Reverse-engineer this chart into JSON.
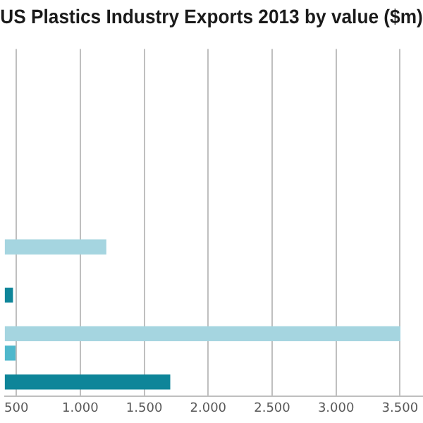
{
  "chart_data": {
    "type": "bar",
    "orientation": "horizontal",
    "title": "US Plastics Industry Exports 2013 by value ($m)",
    "categories": [
      null,
      null,
      null,
      null,
      null,
      null,
      null,
      null,
      null,
      null,
      null,
      null,
      null,
      null,
      null,
      null,
      null,
      null,
      null,
      null,
      null,
      null,
      null,
      null,
      null,
      null,
      null,
      null,
      null,
      null,
      null,
      null,
      null,
      null,
      null,
      null
    ],
    "values": [
      null,
      null,
      null,
      null,
      null,
      null,
      null,
      null,
      null,
      null,
      null,
      null,
      null,
      null,
      null,
      null,
      null,
      null,
      null,
      null,
      1200,
      null,
      null,
      null,
      null,
      470,
      null,
      null,
      null,
      3500,
      null,
      490,
      null,
      null,
      1700,
      null
    ],
    "colors": [
      "#a5d5e0",
      "#a5d5e0",
      "#a5d5e0",
      "#a5d5e0",
      "#a5d5e0",
      "#a5d5e0",
      "#a5d5e0",
      "#a5d5e0",
      "#a5d5e0",
      "#a5d5e0",
      "#a5d5e0",
      "#a5d5e0",
      "#a5d5e0",
      "#a5d5e0",
      "#a5d5e0",
      "#a5d5e0",
      "#a5d5e0",
      "#a5d5e0",
      "#a5d5e0",
      "#a5d5e0",
      "#a5d5e0",
      "#a5d5e0",
      "#a5d5e0",
      "#a5d5e0",
      "#a5d5e0",
      "#0e8599",
      "#a5d5e0",
      "#a5d5e0",
      "#a5d5e0",
      "#a5d5e0",
      "#a5d5e0",
      "#4fb8cc",
      "#a5d5e0",
      "#a5d5e0",
      "#0e8599",
      "#a5d5e0"
    ],
    "xlim": [
      410,
      3680
    ],
    "xticks": [
      {
        "value": 500,
        "label": "500"
      },
      {
        "value": 1000,
        "label": "1.000"
      },
      {
        "value": 1500,
        "label": "1.500"
      },
      {
        "value": 2000,
        "label": "2.000"
      },
      {
        "value": 2500,
        "label": "2.500"
      },
      {
        "value": 3000,
        "label": "3.000"
      },
      {
        "value": 3500,
        "label": "3.500"
      }
    ],
    "grid": "x",
    "tick_labels": "x",
    "legend": false
  }
}
